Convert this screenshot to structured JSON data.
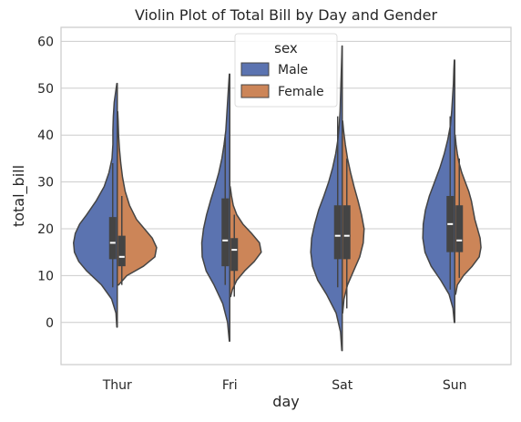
{
  "chart_data": {
    "type": "violin",
    "title": "Violin Plot of Total Bill by Day and Gender",
    "xlabel": "day",
    "ylabel": "total_bill",
    "categories": [
      "Thur",
      "Fri",
      "Sat",
      "Sun"
    ],
    "ylim": [
      -9,
      63
    ],
    "yticks": [
      0,
      10,
      20,
      30,
      40,
      50,
      60
    ],
    "grid": true,
    "split": true,
    "legend": {
      "title": "sex",
      "placement": "top-center"
    },
    "series": [
      {
        "name": "Male",
        "color": "#5b73b0",
        "violins": [
          {
            "category": "Thur",
            "ymin": -1,
            "ymax": 51,
            "median": 17,
            "q1": 13.5,
            "q3": 22.5,
            "whisker_low": 7.5,
            "whisker_high": 34,
            "profile": [
              [
                -1,
                0.01
              ],
              [
                2,
                0.03
              ],
              [
                5,
                0.13
              ],
              [
                8,
                0.36
              ],
              [
                11,
                0.7
              ],
              [
                13,
                0.88
              ],
              [
                15,
                0.98
              ],
              [
                17,
                1.0
              ],
              [
                19,
                0.96
              ],
              [
                21,
                0.86
              ],
              [
                23,
                0.7
              ],
              [
                26,
                0.48
              ],
              [
                29,
                0.3
              ],
              [
                32,
                0.19
              ],
              [
                35,
                0.12
              ],
              [
                38,
                0.1
              ],
              [
                41,
                0.1
              ],
              [
                44,
                0.09
              ],
              [
                47,
                0.07
              ],
              [
                49,
                0.04
              ],
              [
                51,
                0.01
              ]
            ]
          },
          {
            "category": "Fri",
            "ymin": -4,
            "ymax": 53,
            "median": 17.5,
            "q1": 12,
            "q3": 26.5,
            "whisker_low": 8,
            "whisker_high": 40,
            "profile": [
              [
                -4,
                0.01
              ],
              [
                0,
                0.05
              ],
              [
                4,
                0.16
              ],
              [
                8,
                0.36
              ],
              [
                11,
                0.54
              ],
              [
                14,
                0.63
              ],
              [
                17,
                0.64
              ],
              [
                20,
                0.6
              ],
              [
                23,
                0.53
              ],
              [
                26,
                0.44
              ],
              [
                29,
                0.34
              ],
              [
                32,
                0.25
              ],
              [
                35,
                0.18
              ],
              [
                38,
                0.13
              ],
              [
                41,
                0.09
              ],
              [
                44,
                0.07
              ],
              [
                47,
                0.05
              ],
              [
                50,
                0.03
              ],
              [
                53,
                0.01
              ]
            ]
          },
          {
            "category": "Sat",
            "ymin": -6,
            "ymax": 59,
            "median": 18.5,
            "q1": 13.5,
            "q3": 25,
            "whisker_low": 7.5,
            "whisker_high": 44,
            "profile": [
              [
                -6,
                0.01
              ],
              [
                -2,
                0.04
              ],
              [
                2,
                0.14
              ],
              [
                6,
                0.36
              ],
              [
                9,
                0.56
              ],
              [
                12,
                0.68
              ],
              [
                15,
                0.72
              ],
              [
                18,
                0.7
              ],
              [
                21,
                0.63
              ],
              [
                24,
                0.54
              ],
              [
                27,
                0.42
              ],
              [
                30,
                0.31
              ],
              [
                33,
                0.22
              ],
              [
                36,
                0.15
              ],
              [
                39,
                0.1
              ],
              [
                42,
                0.07
              ],
              [
                45,
                0.05
              ],
              [
                48,
                0.04
              ],
              [
                51,
                0.03
              ],
              [
                54,
                0.02
              ],
              [
                57,
                0.01
              ],
              [
                59,
                0.005
              ]
            ]
          },
          {
            "category": "Sun",
            "ymin": 0,
            "ymax": 56,
            "median": 21,
            "q1": 15,
            "q3": 27,
            "whisker_low": 7,
            "whisker_high": 44,
            "profile": [
              [
                0,
                0.01
              ],
              [
                3,
                0.04
              ],
              [
                6,
                0.13
              ],
              [
                9,
                0.32
              ],
              [
                12,
                0.54
              ],
              [
                15,
                0.68
              ],
              [
                18,
                0.73
              ],
              [
                21,
                0.72
              ],
              [
                24,
                0.67
              ],
              [
                27,
                0.58
              ],
              [
                30,
                0.46
              ],
              [
                33,
                0.34
              ],
              [
                36,
                0.24
              ],
              [
                39,
                0.16
              ],
              [
                42,
                0.1
              ],
              [
                45,
                0.07
              ],
              [
                48,
                0.05
              ],
              [
                51,
                0.03
              ],
              [
                54,
                0.02
              ],
              [
                56,
                0.01
              ]
            ]
          }
        ]
      },
      {
        "name": "Female",
        "color": "#cc8558",
        "violins": [
          {
            "category": "Thur",
            "ymin": 8,
            "ymax": 45,
            "median": 14,
            "q1": 12,
            "q3": 18.5,
            "whisker_low": 8,
            "whisker_high": 27,
            "profile": [
              [
                8,
                0.03
              ],
              [
                10,
                0.22
              ],
              [
                12,
                0.6
              ],
              [
                14,
                0.86
              ],
              [
                16,
                0.9
              ],
              [
                18,
                0.8
              ],
              [
                20,
                0.62
              ],
              [
                22,
                0.44
              ],
              [
                25,
                0.28
              ],
              [
                28,
                0.18
              ],
              [
                31,
                0.12
              ],
              [
                34,
                0.08
              ],
              [
                37,
                0.05
              ],
              [
                40,
                0.03
              ],
              [
                43,
                0.02
              ],
              [
                45,
                0.01
              ]
            ]
          },
          {
            "category": "Fri",
            "ymin": 5.5,
            "ymax": 29,
            "median": 15.5,
            "q1": 11,
            "q3": 18,
            "whisker_low": 5.5,
            "whisker_high": 23,
            "profile": [
              [
                5.5,
                0.02
              ],
              [
                7,
                0.06
              ],
              [
                9,
                0.16
              ],
              [
                11,
                0.34
              ],
              [
                13,
                0.56
              ],
              [
                15,
                0.72
              ],
              [
                17,
                0.68
              ],
              [
                19,
                0.5
              ],
              [
                21,
                0.3
              ],
              [
                23,
                0.16
              ],
              [
                25,
                0.08
              ],
              [
                27,
                0.04
              ],
              [
                29,
                0.01
              ]
            ]
          },
          {
            "category": "Sat",
            "ymin": 2,
            "ymax": 43,
            "median": 18.5,
            "q1": 13.5,
            "q3": 25,
            "whisker_low": 3,
            "whisker_high": 35,
            "profile": [
              [
                2,
                0.01
              ],
              [
                5,
                0.04
              ],
              [
                8,
                0.12
              ],
              [
                11,
                0.26
              ],
              [
                14,
                0.4
              ],
              [
                17,
                0.48
              ],
              [
                20,
                0.5
              ],
              [
                23,
                0.44
              ],
              [
                26,
                0.36
              ],
              [
                29,
                0.27
              ],
              [
                32,
                0.19
              ],
              [
                35,
                0.12
              ],
              [
                38,
                0.07
              ],
              [
                41,
                0.03
              ],
              [
                43,
                0.01
              ]
            ]
          },
          {
            "category": "Sun",
            "ymin": 6,
            "ymax": 40,
            "median": 17.5,
            "q1": 15,
            "q3": 25,
            "whisker_low": 9.5,
            "whisker_high": 35,
            "profile": [
              [
                6,
                0.02
              ],
              [
                8,
                0.06
              ],
              [
                10,
                0.2
              ],
              [
                12,
                0.4
              ],
              [
                14,
                0.56
              ],
              [
                16,
                0.6
              ],
              [
                18,
                0.58
              ],
              [
                20,
                0.52
              ],
              [
                22,
                0.46
              ],
              [
                24,
                0.42
              ],
              [
                26,
                0.38
              ],
              [
                28,
                0.32
              ],
              [
                30,
                0.24
              ],
              [
                32,
                0.16
              ],
              [
                34,
                0.1
              ],
              [
                36,
                0.06
              ],
              [
                38,
                0.03
              ],
              [
                40,
                0.01
              ]
            ]
          }
        ]
      }
    ]
  }
}
